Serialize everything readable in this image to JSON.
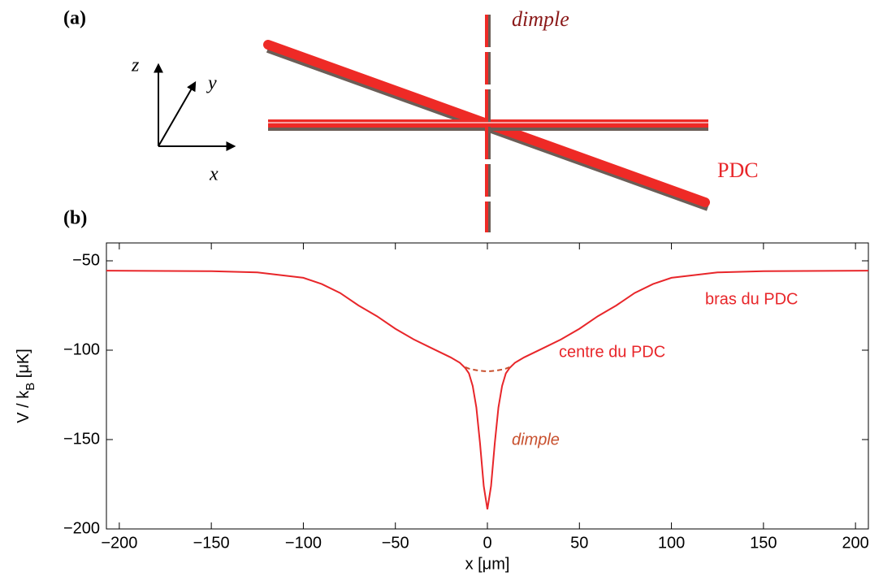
{
  "panel_a": {
    "label": "(a)",
    "axes": [
      "x",
      "y",
      "z"
    ],
    "beam_labels": [
      "dimple",
      "PDC"
    ]
  },
  "panel_b_label": "(b)",
  "chart_data": {
    "type": "line",
    "x": [
      -207,
      -150,
      -125,
      -100,
      -90,
      -80,
      -70,
      -60,
      -50,
      -40,
      -30,
      -20,
      -15,
      -12,
      -10,
      -8,
      -6,
      -4,
      -2,
      0,
      2,
      4,
      6,
      8,
      10,
      12,
      15,
      20,
      30,
      40,
      50,
      60,
      70,
      80,
      90,
      100,
      125,
      150,
      207
    ],
    "series": [
      {
        "color": "#e8262a",
        "dash": false,
        "values": [
          -55.5,
          -55.8,
          -56.5,
          -59.5,
          -63,
          -68,
          -75,
          -81,
          -88,
          -94,
          -99,
          -104,
          -107,
          -110,
          -113,
          -120,
          -132,
          -152,
          -176,
          -189,
          -176,
          -152,
          -132,
          -120,
          -113,
          -110,
          -107,
          -104,
          -99,
          -94,
          -88,
          -81,
          -75,
          -68,
          -63,
          -59.5,
          -56.5,
          -55.8,
          -55.5
        ]
      },
      {
        "color": "#c8502e",
        "dash": true,
        "values": [
          null,
          null,
          null,
          null,
          null,
          null,
          null,
          null,
          null,
          null,
          null,
          null,
          null,
          -109.5,
          -110.3,
          -110.8,
          -111.2,
          -111.5,
          -111.7,
          -111.8,
          -111.7,
          -111.5,
          -111.2,
          -110.8,
          -110.3,
          -109.5,
          null,
          null,
          null,
          null,
          null,
          null,
          null,
          null,
          null,
          null,
          null,
          null,
          null
        ]
      }
    ],
    "annotations": [
      "bras du PDC",
      "centre du PDC",
      "dimple"
    ],
    "xlabel": "x [μm]",
    "ylabel": [
      "V / k",
      "B",
      " [μK]"
    ],
    "xlim": [
      -207,
      207
    ],
    "ylim": [
      -200,
      -40
    ],
    "xticks": [
      {
        "value": -200,
        "label": "−200"
      },
      {
        "value": -150,
        "label": "−150"
      },
      {
        "value": -100,
        "label": "−100"
      },
      {
        "value": -50,
        "label": "−50"
      },
      0,
      50,
      100,
      150,
      200
    ],
    "yticks": [
      {
        "value": -200,
        "label": "−200"
      },
      {
        "value": -150,
        "label": "−150"
      },
      {
        "value": -100,
        "label": "−100"
      },
      {
        "value": -50,
        "label": "−50"
      }
    ],
    "grid": false
  }
}
